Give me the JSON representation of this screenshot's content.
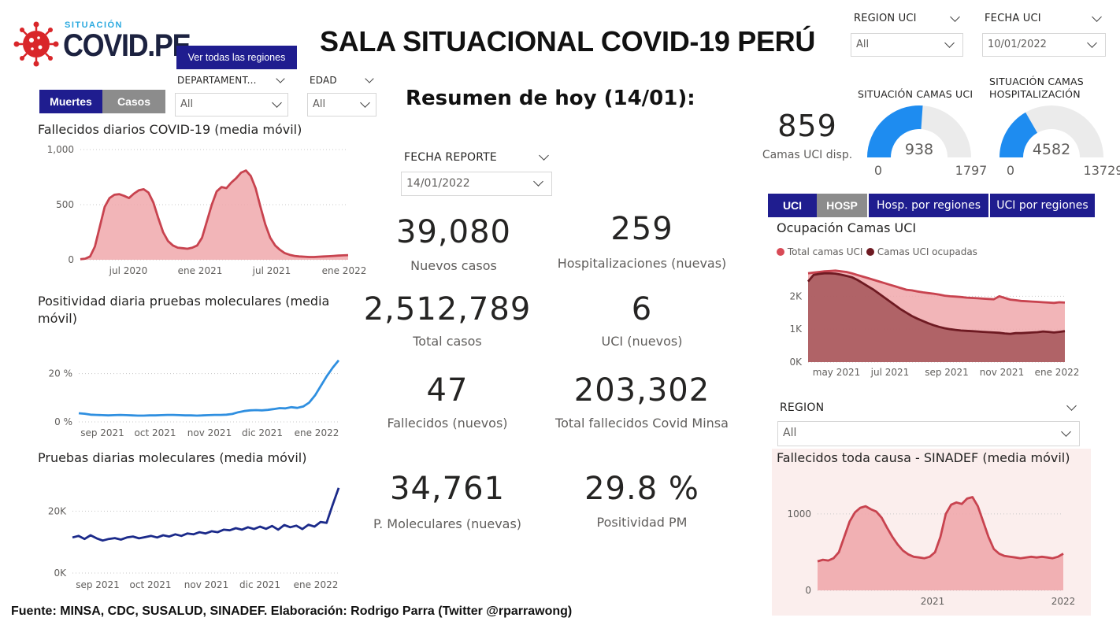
{
  "header": {
    "logo_small": "SITUACIÓN",
    "logo_big": "COVID.PE",
    "title": "SALA SITUACIONAL COVID-19 PERÚ",
    "see_regions_button": "Ver todas las regiones"
  },
  "filters": {
    "region_uci": {
      "label": "REGION UCI",
      "value": "All"
    },
    "fecha_uci": {
      "label": "FECHA UCI",
      "value": "10/01/2022"
    },
    "departamento": {
      "label": "DEPARTAMENT...",
      "value": "All"
    },
    "edad": {
      "label": "EDAD",
      "value": "All"
    },
    "fecha_reporte": {
      "label": "FECHA REPORTE",
      "value": "14/01/2022"
    },
    "region": {
      "label": "REGION",
      "value": "All"
    }
  },
  "toggle_left": {
    "muertes": "Muertes",
    "casos": "Casos"
  },
  "summary": {
    "title": "Resumen de hoy (14/01):",
    "kpis": [
      {
        "value": "39,080",
        "label": "Nuevos casos"
      },
      {
        "value": "259",
        "label": "Hospitalizaciones (nuevas)"
      },
      {
        "value": "2,512,789",
        "label": "Total casos"
      },
      {
        "value": "6",
        "label": "UCI (nuevos)"
      },
      {
        "value": "47",
        "label": "Fallecidos  (nuevos)"
      },
      {
        "value": "203,302",
        "label": "Total fallecidos Covid Minsa"
      },
      {
        "value": "34,761",
        "label": "P. Moleculares (nuevas)"
      },
      {
        "value": "29.8 %",
        "label": "Positividad PM"
      }
    ]
  },
  "beds": {
    "uci_available_value": "859",
    "uci_available_label": "Camas UCI disp.",
    "gauge_uci": {
      "title": "SITUACIÓN CAMAS UCI",
      "value": 938,
      "min": "0",
      "max": 1797,
      "value_label": "938",
      "max_label": "1797"
    },
    "gauge_hosp": {
      "title_line1": "SITUACIÓN CAMAS",
      "title_line2": "HOSPITALIZACIÓN",
      "value": 4582,
      "min": "0",
      "max": 13729,
      "value_label": "4582",
      "max_label": "13729"
    }
  },
  "tabs_right": {
    "uci": "UCI",
    "hosp": "HOSP",
    "hosp_regiones": "Hosp. por regiones",
    "uci_regiones": "UCI por regiones"
  },
  "colors": {
    "navy": "#1f1d8f",
    "grey_button": "#8c8c8c",
    "red_line": "#c8434f",
    "red_fill": "#f0a8ac",
    "dark_red_line": "#6e1a22",
    "dark_red_fill": "#a85a5e",
    "blue_line": "#2f8fe0",
    "dark_blue_line": "#1b2a8a",
    "gauge_blue": "#1e8cf0",
    "gauge_bg": "#ebebeb",
    "sinadef_bg": "#fbeeed"
  },
  "chart_data": [
    {
      "id": "fallecidos",
      "type": "area",
      "title": "Fallecidos diarios COVID-19 (media móvil)",
      "xlabels": [
        "jul 2020",
        "ene 2021",
        "jul 2021",
        "ene 2022"
      ],
      "yticks": [
        "0",
        "500",
        "1,000"
      ],
      "ylim": [
        0,
        1000
      ],
      "series": [
        {
          "values": [
            5,
            10,
            30,
            120,
            300,
            480,
            560,
            590,
            595,
            580,
            560,
            600,
            630,
            640,
            610,
            520,
            380,
            250,
            170,
            130,
            110,
            105,
            100,
            110,
            130,
            200,
            350,
            500,
            620,
            660,
            650,
            700,
            740,
            790,
            810,
            760,
            650,
            480,
            320,
            200,
            130,
            90,
            60,
            45,
            35,
            30,
            28,
            25,
            25,
            28,
            30,
            32,
            35,
            38,
            40,
            42
          ]
        }
      ]
    },
    {
      "id": "positividad",
      "type": "line",
      "title": "Positividad diaria pruebas moleculares (media móvil)",
      "xlabels": [
        "sep 2021",
        "oct 2021",
        "nov 2021",
        "dic 2021",
        "ene 2022"
      ],
      "yticks": [
        "0 %",
        "20 %"
      ],
      "ylim": [
        0,
        30
      ],
      "series": [
        {
          "values": [
            3.6,
            3.4,
            3.0,
            2.9,
            2.8,
            2.7,
            2.8,
            2.9,
            2.8,
            2.7,
            2.6,
            2.6,
            2.7,
            2.7,
            2.8,
            2.9,
            2.9,
            2.8,
            2.7,
            2.7,
            2.6,
            2.7,
            2.8,
            2.9,
            2.9,
            3.0,
            3.3,
            4.0,
            4.5,
            4.8,
            4.9,
            4.8,
            5.0,
            5.3,
            5.7,
            5.6,
            6.1,
            5.8,
            6.4,
            8.0,
            11,
            15,
            19,
            22.5,
            25.5
          ]
        }
      ]
    },
    {
      "id": "pruebas",
      "type": "line",
      "title": "Pruebas diarias moleculares (media móvil)",
      "xlabels": [
        "sep 2021",
        "oct 2021",
        "nov 2021",
        "dic 2021",
        "ene 2022"
      ],
      "yticks": [
        "0K",
        "20K"
      ],
      "ylim": [
        0,
        30000
      ],
      "series": [
        {
          "values": [
            11500,
            12000,
            11000,
            12200,
            11200,
            10500,
            11000,
            11300,
            10800,
            11500,
            11800,
            11200,
            11600,
            12000,
            11500,
            12200,
            11800,
            12500,
            12000,
            12800,
            12500,
            13200,
            12800,
            13500,
            13200,
            14000,
            13800,
            14500,
            14000,
            14800,
            14200,
            15000,
            14300,
            15200,
            14000,
            15500,
            14800,
            15300,
            14200,
            15600,
            15000,
            16500,
            16200,
            22000,
            27500
          ]
        }
      ]
    },
    {
      "id": "ocupacion_uci",
      "type": "area",
      "title": "Ocupación Camas UCI",
      "legend": [
        "Total camas UCI",
        "Camas UCI ocupadas"
      ],
      "xlabels": [
        "may 2021",
        "jul 2021",
        "sep 2021",
        "nov 2021",
        "ene 2022"
      ],
      "yticks": [
        "0K",
        "1K",
        "2K"
      ],
      "ylim": [
        0,
        2800
      ],
      "series": [
        {
          "name": "Total camas UCI",
          "values": [
            2700,
            2720,
            2740,
            2760,
            2770,
            2780,
            2760,
            2740,
            2700,
            2650,
            2600,
            2550,
            2500,
            2450,
            2400,
            2350,
            2300,
            2250,
            2200,
            2180,
            2150,
            2120,
            2100,
            2080,
            2050,
            2020,
            2000,
            1990,
            1980,
            1960,
            1950,
            1940,
            1930,
            1920,
            1910,
            2000,
            1950,
            1900,
            1880,
            1860,
            1850,
            1840,
            1830,
            1820,
            1810,
            1800,
            1820,
            1810
          ]
        },
        {
          "name": "Camas UCI ocupadas",
          "values": [
            2450,
            2650,
            2680,
            2700,
            2700,
            2690,
            2660,
            2620,
            2580,
            2500,
            2400,
            2300,
            2200,
            2080,
            1960,
            1840,
            1720,
            1600,
            1500,
            1400,
            1320,
            1250,
            1180,
            1120,
            1070,
            1030,
            1000,
            980,
            960,
            950,
            940,
            930,
            920,
            910,
            900,
            890,
            870,
            860,
            880,
            880,
            890,
            900,
            910,
            930,
            920,
            900,
            920,
            940
          ]
        }
      ]
    },
    {
      "id": "sinadef",
      "type": "area",
      "title": "Fallecidos toda causa - SINADEF (media móvil)",
      "xlabels": [
        "2021",
        "2022"
      ],
      "yticks": [
        "0",
        "1000"
      ],
      "ylim": [
        0,
        1400
      ],
      "series": [
        {
          "values": [
            380,
            400,
            390,
            420,
            500,
            700,
            900,
            1020,
            1080,
            1100,
            1060,
            1030,
            950,
            820,
            700,
            600,
            520,
            470,
            440,
            430,
            420,
            440,
            500,
            700,
            1000,
            1120,
            1150,
            1130,
            1200,
            1220,
            1100,
            900,
            700,
            540,
            480,
            450,
            440,
            430,
            420,
            430,
            440,
            430,
            440,
            430,
            420,
            440,
            480
          ]
        }
      ]
    }
  ],
  "footer": "Fuente: MINSA, CDC, SUSALUD, SINADEF. Elaboración: Rodrigo Parra (Twitter @rparrawong)"
}
